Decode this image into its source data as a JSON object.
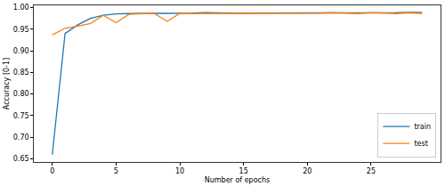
{
  "chart_data": {
    "type": "line",
    "x_label": "Number of epochs",
    "y_label": "Accuracy [0-1]",
    "x": [
      0,
      1,
      2,
      3,
      4,
      5,
      6,
      7,
      8,
      9,
      10,
      11,
      12,
      13,
      14,
      15,
      16,
      17,
      18,
      19,
      20,
      21,
      22,
      23,
      24,
      25,
      26,
      27,
      28,
      29
    ],
    "series": [
      {
        "name": "train",
        "color": "#1f77b4",
        "values": [
          0.66,
          0.94,
          0.96,
          0.975,
          0.982,
          0.985,
          0.986,
          0.986,
          0.987,
          0.987,
          0.987,
          0.987,
          0.988,
          0.987,
          0.987,
          0.987,
          0.987,
          0.988,
          0.988,
          0.987,
          0.988,
          0.988,
          0.988,
          0.988,
          0.988,
          0.988,
          0.988,
          0.988,
          0.989,
          0.989
        ]
      },
      {
        "name": "test",
        "color": "#ff7f0e",
        "values": [
          0.937,
          0.952,
          0.957,
          0.963,
          0.982,
          0.965,
          0.984,
          0.986,
          0.986,
          0.968,
          0.986,
          0.986,
          0.987,
          0.986,
          0.986,
          0.986,
          0.986,
          0.987,
          0.986,
          0.987,
          0.986,
          0.987,
          0.988,
          0.987,
          0.986,
          0.988,
          0.987,
          0.986,
          0.988,
          0.986
        ]
      }
    ],
    "xlim": [
      -1.45,
      30.45
    ],
    "xticks": [
      0,
      5,
      10,
      15,
      20,
      25
    ],
    "ylim": [
      0.643,
      1.005
    ],
    "yticks": [
      0.65,
      {
        "value": 0.7,
        "label": "0.70"
      },
      0.75,
      {
        "value": 0.8,
        "label": "0.80"
      },
      0.85,
      {
        "value": 0.9,
        "label": "0.90"
      },
      0.95,
      {
        "value": 1,
        "label": "1.00"
      }
    ],
    "grid": false,
    "legend": "lower right"
  }
}
